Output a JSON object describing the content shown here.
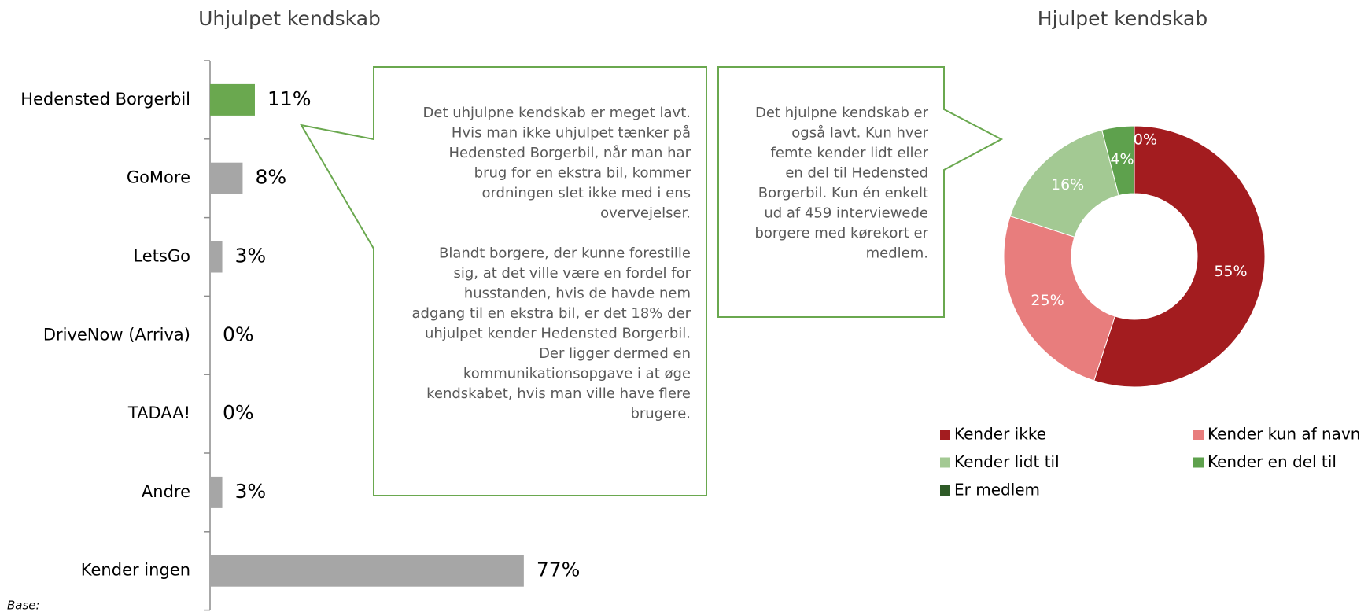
{
  "chart_data": [
    {
      "type": "bar",
      "orientation": "horizontal",
      "title": "Uhjulpet kendskab",
      "categories": [
        "Hedensted Borgerbil",
        "GoMore",
        "LetsGo",
        "DriveNow (Arriva)",
        "TADAA!",
        "Andre",
        "Kender ingen"
      ],
      "values": [
        11,
        8,
        3,
        0,
        0,
        3,
        77
      ],
      "value_labels": [
        "11%",
        "8%",
        "3%",
        "0%",
        "0%",
        "3%",
        "77%"
      ],
      "colors": [
        "#6aa84f",
        "#a6a6a6",
        "#a6a6a6",
        "#a6a6a6",
        "#a6a6a6",
        "#a6a6a6",
        "#a6a6a6"
      ]
    },
    {
      "type": "donut",
      "title": "Hjulpet kendskab",
      "categories": [
        "Kender ikke",
        "Kender kun af navn",
        "Kender lidt til",
        "Kender en del til",
        "Er medlem"
      ],
      "values": [
        55,
        25,
        16,
        4,
        0
      ],
      "value_labels": [
        "55%",
        "25%",
        "16%",
        "4%",
        "0%"
      ],
      "colors": [
        "#a31c1f",
        "#e87d7d",
        "#a3c993",
        "#5ea14d",
        "#2e5a27"
      ],
      "legend": "bottom"
    }
  ],
  "callouts": [
    {
      "paragraphs": [
        [
          "Det uhjulpne kendskab er meget lavt.",
          "Hvis man ikke uhjulpet tænker på",
          "Hedensted Borgerbil, når man har",
          "brug for en ekstra bil, kommer",
          "ordningen slet ikke med i ens",
          "overvejelser."
        ],
        [
          "Blandt borgere, der kunne forestille",
          "sig, at det ville være en fordel for",
          "husstanden, hvis de havde nem",
          "adgang til en ekstra bil, er det 18% der",
          "uhjulpet kender Hedensted Borgerbil.",
          "Der ligger dermed en",
          "kommunikationsopgave i at øge",
          "kendskabet, hvis man ville have flere",
          "brugere."
        ]
      ]
    },
    {
      "paragraphs": [
        [
          "Det hjulpne kendskab er",
          "også lavt. Kun hver",
          "femte kender lidt eller",
          "en del til Hedensted",
          "Borgerbil. Kun én enkelt",
          "ud af 459 interviewede",
          "borgere med kørekort er",
          "medlem."
        ]
      ]
    }
  ],
  "footnote": "Base:"
}
